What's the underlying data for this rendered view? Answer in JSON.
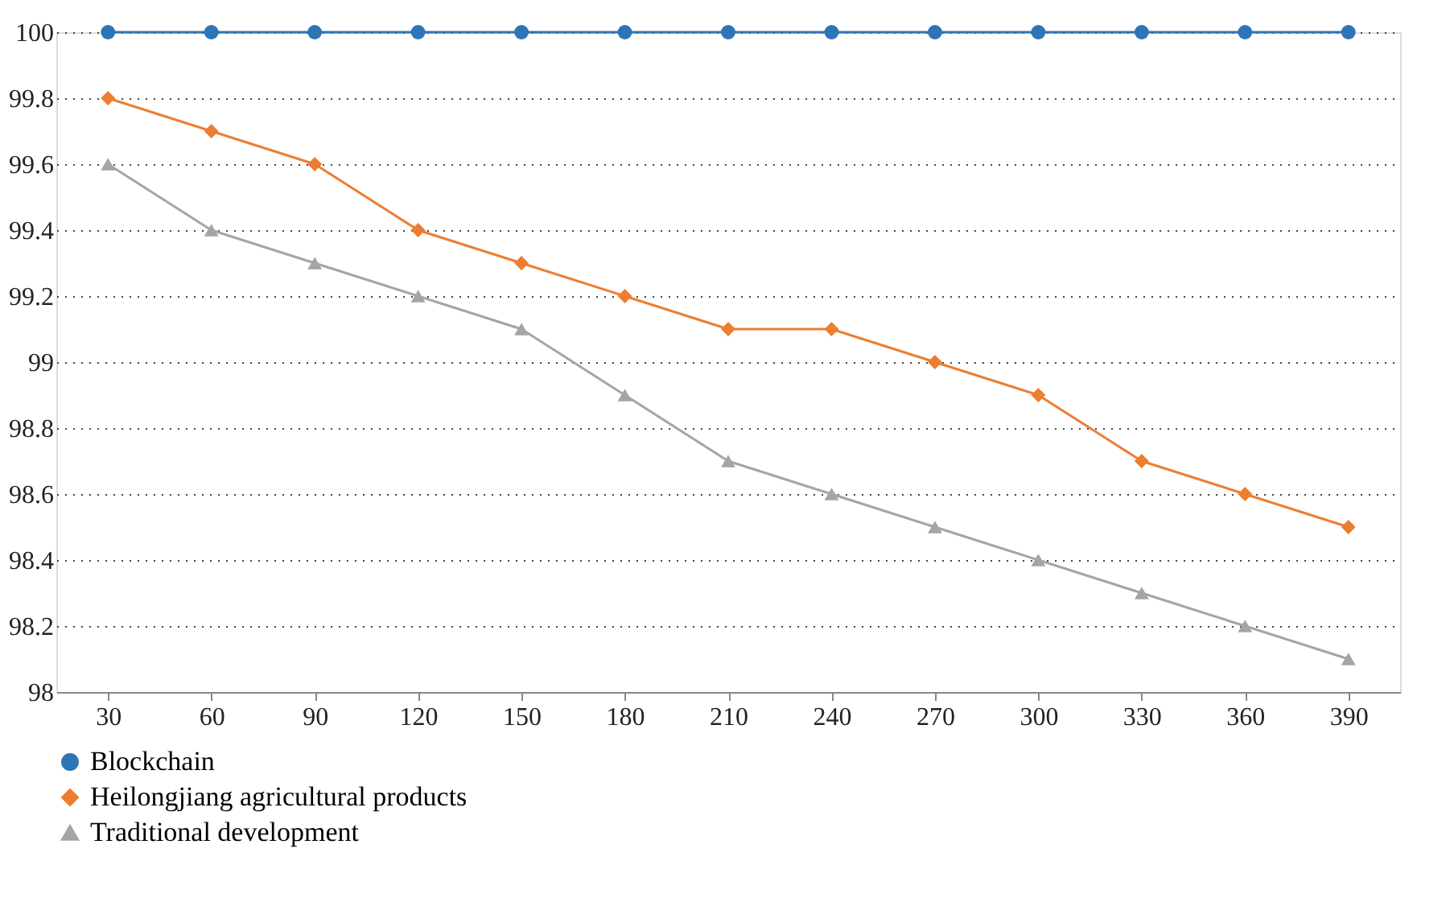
{
  "chart_data": {
    "type": "line",
    "categories": [
      "30",
      "60",
      "90",
      "120",
      "150",
      "180",
      "210",
      "240",
      "270",
      "300",
      "330",
      "360",
      "390"
    ],
    "series": [
      {
        "name": "Blockchain",
        "color": "#2e75b6",
        "marker": "circle",
        "values": [
          100,
          100,
          100,
          100,
          100,
          100,
          100,
          100,
          100,
          100,
          100,
          100,
          100
        ]
      },
      {
        "name": "Heilongjiang agricultural products",
        "color": "#ed7d31",
        "marker": "diamond",
        "values": [
          99.8,
          99.7,
          99.6,
          99.4,
          99.3,
          99.2,
          99.1,
          99.1,
          99.0,
          98.9,
          98.7,
          98.6,
          98.5
        ]
      },
      {
        "name": "Traditional development",
        "color": "#a5a5a5",
        "marker": "triangle",
        "values": [
          99.6,
          99.4,
          99.3,
          99.2,
          99.1,
          98.9,
          98.7,
          98.6,
          98.5,
          98.4,
          98.3,
          98.2,
          98.1
        ]
      }
    ],
    "ylim": [
      98,
      100
    ],
    "yticks": [
      98,
      98.2,
      98.4,
      98.6,
      98.8,
      99,
      99.2,
      99.4,
      99.6,
      99.8,
      100
    ],
    "grid": "y",
    "legend": "bottom left"
  }
}
